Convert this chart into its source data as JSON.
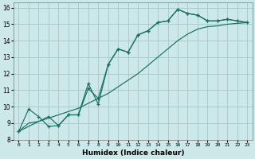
{
  "xlabel": "Humidex (Indice chaleur)",
  "bg_color": "#cce8e8",
  "grid_color": "#aacccc",
  "line_color": "#1a7060",
  "xlim": [
    -0.5,
    23.5
  ],
  "ylim": [
    8,
    16.3
  ],
  "xticks": [
    0,
    1,
    2,
    3,
    4,
    5,
    6,
    7,
    8,
    9,
    10,
    11,
    12,
    13,
    14,
    15,
    16,
    17,
    18,
    19,
    20,
    21,
    22,
    23
  ],
  "yticks": [
    8,
    9,
    10,
    11,
    12,
    13,
    14,
    15,
    16
  ],
  "line1_x": [
    0,
    1,
    2,
    3,
    4,
    5,
    6,
    7,
    8,
    9,
    10,
    11,
    12,
    13,
    14,
    15,
    16,
    17,
    18,
    19,
    20,
    21,
    22,
    23
  ],
  "line1_y": [
    8.5,
    9.85,
    9.4,
    8.8,
    8.85,
    9.5,
    9.5,
    11.4,
    10.15,
    12.55,
    13.5,
    13.3,
    14.35,
    14.6,
    15.1,
    15.2,
    15.9,
    15.65,
    15.55,
    15.2,
    15.2,
    15.3,
    15.2,
    15.1
  ],
  "line2_x": [
    0,
    3,
    4,
    5,
    6,
    7,
    8,
    9,
    10,
    11,
    12,
    13,
    14,
    15,
    16,
    17,
    18,
    19,
    20,
    21,
    22,
    23
  ],
  "line2_y": [
    8.5,
    9.4,
    8.85,
    9.5,
    9.5,
    11.1,
    10.5,
    12.55,
    13.5,
    13.3,
    14.35,
    14.6,
    15.1,
    15.2,
    15.9,
    15.65,
    15.55,
    15.2,
    15.2,
    15.3,
    15.2,
    15.1
  ],
  "line3_x": [
    0,
    1,
    2,
    3,
    4,
    5,
    6,
    7,
    8,
    9,
    10,
    11,
    12,
    13,
    14,
    15,
    16,
    17,
    18,
    19,
    20,
    21,
    22,
    23
  ],
  "line3_y": [
    8.5,
    9.0,
    9.1,
    9.3,
    9.5,
    9.7,
    9.9,
    10.2,
    10.5,
    10.8,
    11.2,
    11.6,
    12.0,
    12.5,
    13.0,
    13.5,
    14.0,
    14.4,
    14.7,
    14.85,
    14.9,
    15.0,
    15.05,
    15.1
  ]
}
